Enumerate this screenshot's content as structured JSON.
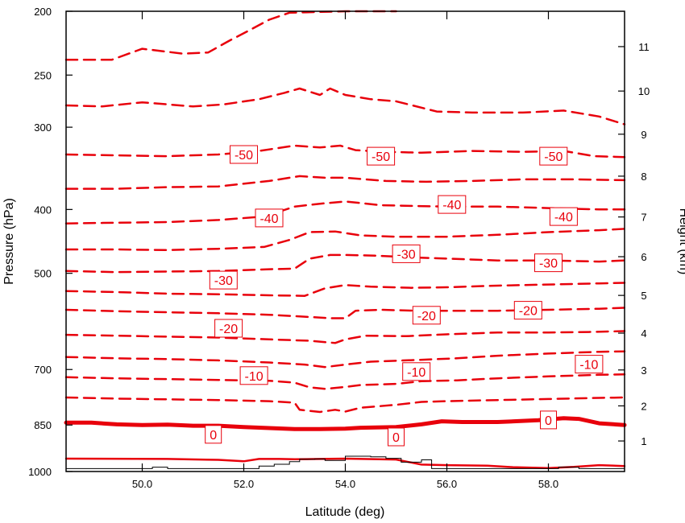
{
  "chart_data": {
    "type": "line",
    "title": "",
    "xlabel": "Latitude (deg)",
    "ylabel": "Pressure (hPa)",
    "y2label": "Height (km)",
    "xlim": [
      48.5,
      59.5
    ],
    "ylim_pressure": [
      1000,
      200
    ],
    "y_scale": "log",
    "x_ticks": [
      50.0,
      52.0,
      54.0,
      56.0,
      58.0
    ],
    "x_tick_labels": [
      "50.0",
      "52.0",
      "54.0",
      "56.0",
      "58.0"
    ],
    "y_ticks": [
      200,
      250,
      300,
      400,
      500,
      700,
      850,
      1000
    ],
    "y_tick_labels": [
      "200",
      "250",
      "300",
      "400",
      "500",
      "700",
      "850",
      "1000"
    ],
    "y2_ticks": [
      1,
      2,
      3,
      4,
      5,
      6,
      7,
      8,
      9,
      10,
      11
    ],
    "y2_tick_labels": [
      "1",
      "2",
      "3",
      "4",
      "5",
      "6",
      "7",
      "8",
      "9",
      "10",
      "11"
    ],
    "line_color": "#e8000b",
    "terrain_color": "#000000",
    "contour_labels": [
      {
        "text": "-50",
        "lat": 52.0,
        "p": 330
      },
      {
        "text": "-50",
        "lat": 54.7,
        "p": 332
      },
      {
        "text": "-50",
        "lat": 58.1,
        "p": 332
      },
      {
        "text": "-40",
        "lat": 52.5,
        "p": 412
      },
      {
        "text": "-40",
        "lat": 56.1,
        "p": 393
      },
      {
        "text": "-40",
        "lat": 58.3,
        "p": 410
      },
      {
        "text": "-30",
        "lat": 51.6,
        "p": 512
      },
      {
        "text": "-30",
        "lat": 55.2,
        "p": 467
      },
      {
        "text": "-30",
        "lat": 58.0,
        "p": 482
      },
      {
        "text": "-20",
        "lat": 51.7,
        "p": 606
      },
      {
        "text": "-20",
        "lat": 55.6,
        "p": 579
      },
      {
        "text": "-20",
        "lat": 57.6,
        "p": 569
      },
      {
        "text": "-10",
        "lat": 52.2,
        "p": 715
      },
      {
        "text": "-10",
        "lat": 55.4,
        "p": 705
      },
      {
        "text": "-10",
        "lat": 58.8,
        "p": 687
      },
      {
        "text": "0",
        "lat": 51.4,
        "p": 878
      },
      {
        "text": "0",
        "lat": 55.0,
        "p": 886
      },
      {
        "text": "0",
        "lat": 58.0,
        "p": 835
      }
    ],
    "series": [
      {
        "values": [
          [
            48.5,
            237
          ],
          [
            49.4,
            237
          ],
          [
            50.0,
            228
          ],
          [
            50.8,
            232
          ],
          [
            51.3,
            231
          ],
          [
            51.7,
            222
          ],
          [
            52.1,
            214
          ],
          [
            52.5,
            206
          ],
          [
            52.9,
            201
          ],
          [
            54.0,
            200
          ],
          [
            55.0,
            200
          ]
        ]
      },
      {
        "values": [
          [
            48.5,
            278
          ],
          [
            49.2,
            279
          ],
          [
            50.0,
            275
          ],
          [
            51.0,
            279
          ],
          [
            51.6,
            277
          ],
          [
            52.3,
            272
          ],
          [
            52.8,
            266
          ],
          [
            53.1,
            262
          ],
          [
            53.5,
            268
          ],
          [
            53.7,
            262
          ],
          [
            54.0,
            268
          ],
          [
            54.5,
            272
          ],
          [
            55.0,
            274
          ],
          [
            55.8,
            284
          ],
          [
            56.5,
            285
          ],
          [
            57.5,
            285
          ],
          [
            58.3,
            283
          ],
          [
            59.0,
            289
          ],
          [
            59.5,
            297
          ]
        ]
      },
      {
        "values": [
          [
            48.5,
            330
          ],
          [
            49.5,
            331
          ],
          [
            50.5,
            332
          ],
          [
            51.5,
            330
          ],
          [
            52.3,
            326
          ],
          [
            53.0,
            320
          ],
          [
            53.5,
            322
          ],
          [
            53.9,
            320
          ],
          [
            54.2,
            325
          ],
          [
            54.8,
            327
          ],
          [
            55.5,
            328
          ],
          [
            56.5,
            326
          ],
          [
            57.5,
            327
          ],
          [
            58.3,
            326
          ],
          [
            58.9,
            332
          ],
          [
            59.5,
            333
          ]
        ]
      },
      {
        "values": [
          [
            48.5,
            372
          ],
          [
            49.5,
            372
          ],
          [
            50.5,
            370
          ],
          [
            51.5,
            369
          ],
          [
            52.5,
            362
          ],
          [
            53.1,
            356
          ],
          [
            53.6,
            358
          ],
          [
            54.0,
            358
          ],
          [
            54.8,
            362
          ],
          [
            55.6,
            363
          ],
          [
            56.5,
            362
          ],
          [
            57.5,
            360
          ],
          [
            58.5,
            360
          ],
          [
            59.5,
            361
          ]
        ]
      },
      {
        "values": [
          [
            48.5,
            420
          ],
          [
            49.5,
            419
          ],
          [
            50.5,
            418
          ],
          [
            51.5,
            415
          ],
          [
            52.4,
            410
          ],
          [
            53.0,
            396
          ],
          [
            53.5,
            392
          ],
          [
            54.0,
            389
          ],
          [
            54.7,
            394
          ],
          [
            55.3,
            395
          ],
          [
            56.0,
            396
          ],
          [
            57.0,
            396
          ],
          [
            58.0,
            398
          ],
          [
            59.0,
            400
          ],
          [
            59.5,
            400
          ]
        ]
      },
      {
        "values": [
          [
            48.5,
            460
          ],
          [
            49.5,
            460
          ],
          [
            50.5,
            461
          ],
          [
            51.5,
            459
          ],
          [
            52.4,
            456
          ],
          [
            52.9,
            445
          ],
          [
            53.3,
            433
          ],
          [
            53.8,
            432
          ],
          [
            54.3,
            438
          ],
          [
            55.0,
            440
          ],
          [
            56.0,
            440
          ],
          [
            57.0,
            437
          ],
          [
            58.0,
            433
          ],
          [
            59.0,
            430
          ],
          [
            59.5,
            428
          ]
        ]
      },
      {
        "values": [
          [
            48.5,
            496
          ],
          [
            49.5,
            498
          ],
          [
            50.5,
            497
          ],
          [
            51.5,
            496
          ],
          [
            52.5,
            493
          ],
          [
            53.0,
            492
          ],
          [
            53.3,
            475
          ],
          [
            53.7,
            469
          ],
          [
            54.0,
            469
          ],
          [
            54.6,
            470
          ],
          [
            55.3,
            473
          ],
          [
            56.0,
            475
          ],
          [
            57.0,
            478
          ],
          [
            58.0,
            478
          ],
          [
            59.0,
            480
          ],
          [
            59.5,
            478
          ]
        ]
      },
      {
        "values": [
          [
            48.5,
            532
          ],
          [
            49.5,
            534
          ],
          [
            50.5,
            537
          ],
          [
            51.5,
            538
          ],
          [
            52.5,
            540
          ],
          [
            53.2,
            541
          ],
          [
            53.6,
            527
          ],
          [
            54.0,
            521
          ],
          [
            54.5,
            524
          ],
          [
            55.3,
            526
          ],
          [
            56.0,
            525
          ],
          [
            57.0,
            522
          ],
          [
            58.0,
            520
          ],
          [
            59.0,
            518
          ],
          [
            59.5,
            517
          ]
        ]
      },
      {
        "values": [
          [
            48.5,
            568
          ],
          [
            49.5,
            571
          ],
          [
            50.5,
            573
          ],
          [
            51.5,
            575
          ],
          [
            52.5,
            578
          ],
          [
            53.2,
            582
          ],
          [
            53.7,
            585
          ],
          [
            54.0,
            585
          ],
          [
            54.2,
            570
          ],
          [
            54.7,
            568
          ],
          [
            55.4,
            570
          ],
          [
            56.2,
            570
          ],
          [
            57.0,
            570
          ],
          [
            58.0,
            568
          ],
          [
            59.0,
            566
          ],
          [
            59.5,
            564
          ]
        ]
      },
      {
        "values": [
          [
            48.5,
            620
          ],
          [
            49.5,
            622
          ],
          [
            50.5,
            624
          ],
          [
            51.5,
            626
          ],
          [
            52.5,
            630
          ],
          [
            53.3,
            633
          ],
          [
            53.8,
            638
          ],
          [
            54.0,
            630
          ],
          [
            54.4,
            622
          ],
          [
            55.2,
            623
          ],
          [
            56.0,
            619
          ],
          [
            57.0,
            615
          ],
          [
            58.0,
            615
          ],
          [
            58.8,
            614
          ],
          [
            59.5,
            612
          ]
        ]
      },
      {
        "values": [
          [
            48.5,
            670
          ],
          [
            49.5,
            673
          ],
          [
            50.5,
            675
          ],
          [
            51.5,
            678
          ],
          [
            52.5,
            683
          ],
          [
            53.2,
            688
          ],
          [
            53.6,
            694
          ],
          [
            54.0,
            688
          ],
          [
            54.5,
            681
          ],
          [
            55.4,
            677
          ],
          [
            56.2,
            673
          ],
          [
            57.0,
            667
          ],
          [
            58.0,
            662
          ],
          [
            59.0,
            658
          ],
          [
            59.5,
            657
          ]
        ]
      },
      {
        "values": [
          [
            48.5,
            719
          ],
          [
            49.5,
            722
          ],
          [
            50.5,
            724
          ],
          [
            51.5,
            726
          ],
          [
            52.5,
            728
          ],
          [
            53.0,
            733
          ],
          [
            53.3,
            745
          ],
          [
            53.6,
            749
          ],
          [
            54.0,
            744
          ],
          [
            54.3,
            739
          ],
          [
            55.0,
            736
          ],
          [
            55.5,
            729
          ],
          [
            56.2,
            727
          ],
          [
            57.0,
            722
          ],
          [
            58.0,
            717
          ],
          [
            59.0,
            713
          ],
          [
            59.5,
            712
          ]
        ]
      },
      {
        "values": [
          [
            48.5,
            772
          ],
          [
            49.5,
            775
          ],
          [
            50.5,
            777
          ],
          [
            51.5,
            779
          ],
          [
            52.5,
            782
          ],
          [
            53.0,
            786
          ],
          [
            53.1,
            806
          ],
          [
            53.5,
            812
          ],
          [
            53.8,
            806
          ],
          [
            54.0,
            811
          ],
          [
            54.3,
            800
          ],
          [
            55.0,
            792
          ],
          [
            55.5,
            784
          ],
          [
            56.0,
            782
          ],
          [
            57.0,
            779
          ],
          [
            58.0,
            776
          ],
          [
            59.0,
            773
          ],
          [
            59.5,
            772
          ]
        ]
      },
      {
        "values": [
          [
            48.5,
            843
          ],
          [
            49.0,
            843
          ],
          [
            49.5,
            848
          ],
          [
            50.0,
            850
          ],
          [
            50.5,
            849
          ],
          [
            51.0,
            852
          ],
          [
            51.5,
            852
          ],
          [
            52.0,
            856
          ],
          [
            52.5,
            859
          ],
          [
            53.0,
            862
          ],
          [
            53.5,
            862
          ],
          [
            54.0,
            861
          ],
          [
            54.3,
            858
          ],
          [
            55.0,
            856
          ],
          [
            55.5,
            848
          ],
          [
            55.9,
            839
          ],
          [
            56.3,
            841
          ],
          [
            57.0,
            841
          ],
          [
            57.8,
            836
          ],
          [
            58.3,
            830
          ],
          [
            58.6,
            832
          ],
          [
            59.0,
            845
          ],
          [
            59.5,
            850
          ]
        ]
      },
      {
        "values": [
          [
            48.5,
            956
          ],
          [
            50.5,
            957
          ],
          [
            51.5,
            960
          ],
          [
            52.0,
            965
          ],
          [
            52.3,
            957
          ],
          [
            52.7,
            957
          ],
          [
            53.0,
            958
          ],
          [
            53.5,
            957
          ],
          [
            54.0,
            956
          ],
          [
            55.0,
            959
          ],
          [
            55.5,
            976
          ],
          [
            56.0,
            978
          ],
          [
            56.8,
            980
          ],
          [
            57.3,
            985
          ],
          [
            58.0,
            988
          ],
          [
            58.5,
            984
          ],
          [
            59.0,
            978
          ],
          [
            59.5,
            981
          ]
        ]
      }
    ],
    "terrain": [
      [
        48.5,
        990
      ],
      [
        50.0,
        990
      ],
      [
        50.2,
        985
      ],
      [
        50.5,
        990
      ],
      [
        52.2,
        990
      ],
      [
        52.3,
        981
      ],
      [
        52.6,
        975
      ],
      [
        52.9,
        966
      ],
      [
        53.1,
        958
      ],
      [
        53.4,
        957
      ],
      [
        53.6,
        962
      ],
      [
        54.0,
        948
      ],
      [
        54.5,
        950
      ],
      [
        54.8,
        955
      ],
      [
        55.1,
        968
      ],
      [
        55.5,
        960
      ],
      [
        55.7,
        990
      ],
      [
        57.9,
        990
      ],
      [
        58.2,
        985
      ],
      [
        58.6,
        990
      ],
      [
        59.5,
        990
      ]
    ]
  }
}
